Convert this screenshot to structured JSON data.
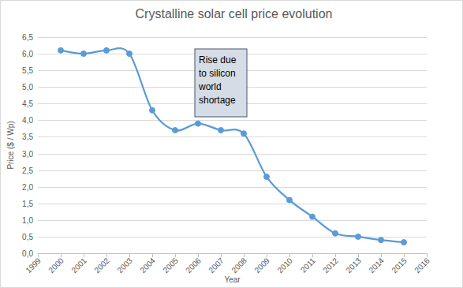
{
  "chart_data": {
    "type": "line",
    "title": "Crystalline solar cell price evolution",
    "x_label": "Year",
    "y_label": "Price ($ / Wp)",
    "annotation": "Rise due to silicon world shortage",
    "x": [
      2000,
      2001,
      2002,
      2003,
      2004,
      2005,
      2006,
      2007,
      2008,
      2009,
      2010,
      2011,
      2012,
      2013,
      2014,
      2015
    ],
    "values": [
      6.1,
      6.0,
      6.1,
      6.0,
      4.3,
      3.7,
      3.9,
      3.7,
      3.6,
      2.3,
      1.6,
      1.1,
      0.6,
      0.5,
      0.4,
      0.33
    ],
    "color": "#5b9bd5",
    "marker": "circle",
    "line_style": "smooth",
    "grid": true,
    "xlim": [
      1999,
      2016
    ],
    "xticks": [
      1999,
      2000,
      2001,
      2002,
      2003,
      2004,
      2005,
      2006,
      2007,
      2008,
      2009,
      2010,
      2011,
      2012,
      2013,
      2014,
      2015,
      2016
    ],
    "ylim": [
      0,
      6.5
    ],
    "yticks": [
      {
        "value": 0,
        "label": "0,0"
      },
      {
        "value": 0.5,
        "label": "0,5"
      },
      {
        "value": 1,
        "label": "1,0"
      },
      {
        "value": 1.5,
        "label": "1,5"
      },
      {
        "value": 2,
        "label": "2,0"
      },
      {
        "value": 2.5,
        "label": "2,5"
      },
      {
        "value": 3,
        "label": "3,0"
      },
      {
        "value": 3.5,
        "label": "3,5"
      },
      {
        "value": 4,
        "label": "4,0"
      },
      {
        "value": 4.5,
        "label": "4,5"
      },
      {
        "value": 5,
        "label": "5,0"
      },
      {
        "value": 5.5,
        "label": "5,5"
      },
      {
        "value": 6,
        "label": "6,0"
      },
      {
        "value": 6.5,
        "label": "6,5"
      }
    ]
  }
}
